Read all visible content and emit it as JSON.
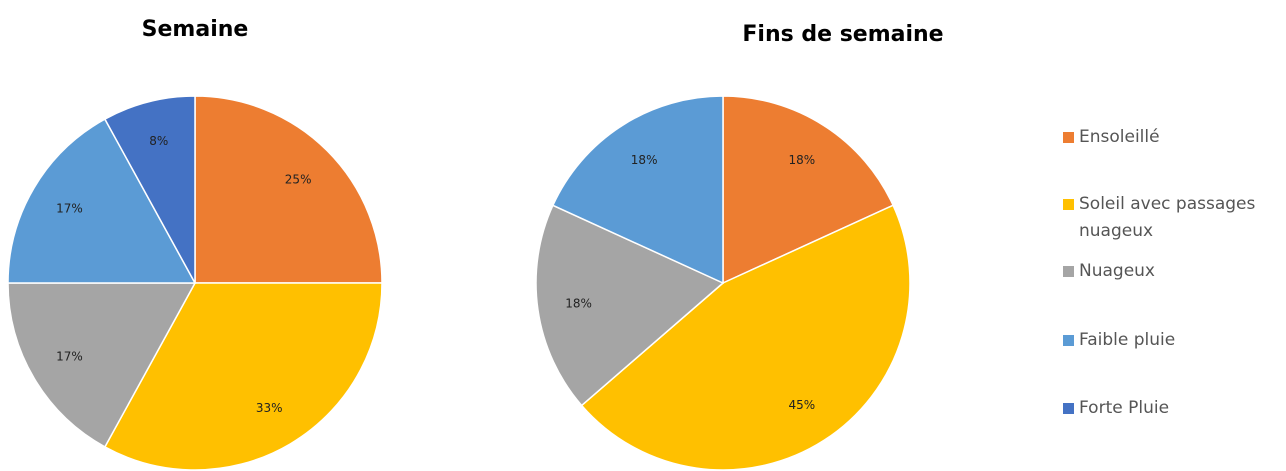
{
  "chart_data": [
    {
      "type": "pie",
      "title": "Semaine",
      "categories": [
        "Ensoleillé",
        "Soleil avec passages nuageux",
        "Nuageux",
        "Faible pluie",
        "Forte Pluie"
      ],
      "values": [
        25,
        33,
        17,
        17,
        8
      ],
      "value_labels": [
        "25%",
        "33%",
        "17%",
        "17%",
        "8%"
      ],
      "colors": [
        "#ed7d31",
        "#ffc000",
        "#a5a5a5",
        "#5b9bd5",
        "#4472c4"
      ],
      "legend": "right"
    },
    {
      "type": "pie",
      "title": "Fins de semaine",
      "categories": [
        "Ensoleillé",
        "Soleil avec passages nuageux",
        "Nuageux",
        "Faible pluie"
      ],
      "values": [
        18,
        45,
        18,
        18
      ],
      "value_labels": [
        "18%",
        "45%",
        "18%",
        "18%"
      ],
      "colors": [
        "#ed7d31",
        "#ffc000",
        "#a5a5a5",
        "#5b9bd5"
      ]
    }
  ]
}
